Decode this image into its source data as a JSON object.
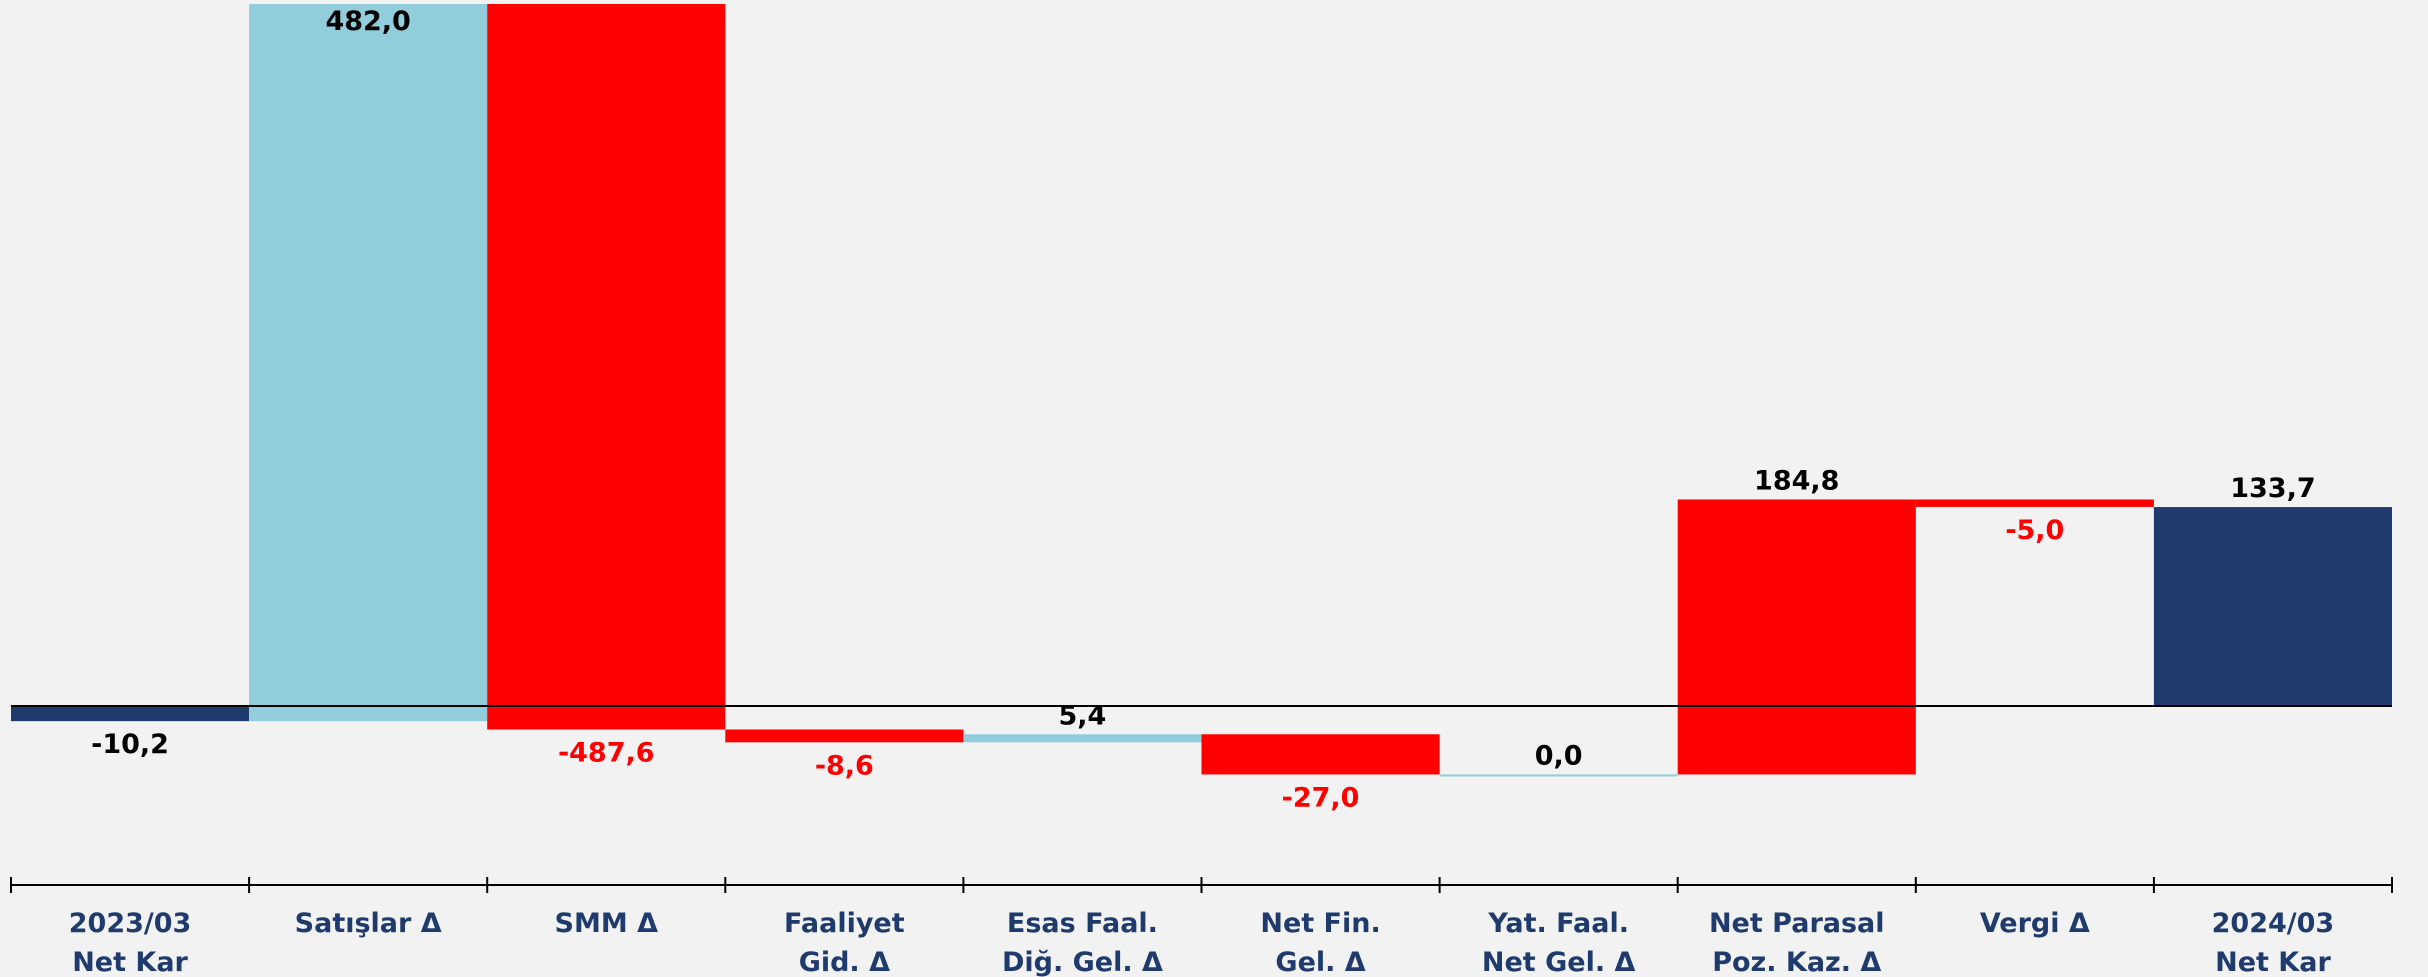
{
  "chart_data": {
    "type": "waterfall",
    "categories": [
      "2023/03\nNet Kar",
      "Satışlar Δ",
      "SMM Δ",
      "Faaliyet\nGid. Δ",
      "Esas Faal.\nDiğ. Gel. Δ",
      "Net Fin.\nGel. Δ",
      "Yat. Faal.\nNet Gel. Δ",
      "Net Parasal\nPoz. Kaz. Δ",
      "Vergi Δ",
      "2024/03\nNet Kar"
    ],
    "values": [
      -10.2,
      482.0,
      -487.6,
      -8.6,
      5.4,
      -27.0,
      0.0,
      184.8,
      -5.0,
      133.7
    ],
    "value_labels": [
      "-10,2",
      "482,0",
      "-487,6",
      "-8,6",
      "5,4",
      "-27,0",
      "0,0",
      "184,8",
      "-5,0",
      "133,7"
    ],
    "colors": [
      "#1f3b6e",
      "#92cddc",
      "#ff0000",
      "#ff0000",
      "#92cddc",
      "#ff0000",
      "#92cddc",
      "#ff0000",
      "#ff0000",
      "#1f3b6e"
    ],
    "label_colors": [
      "#000000",
      "#000000",
      "#ff0000",
      "#ff0000",
      "#000000",
      "#ff0000",
      "#000000",
      "#000000",
      "#ff0000",
      "#000000"
    ]
  }
}
